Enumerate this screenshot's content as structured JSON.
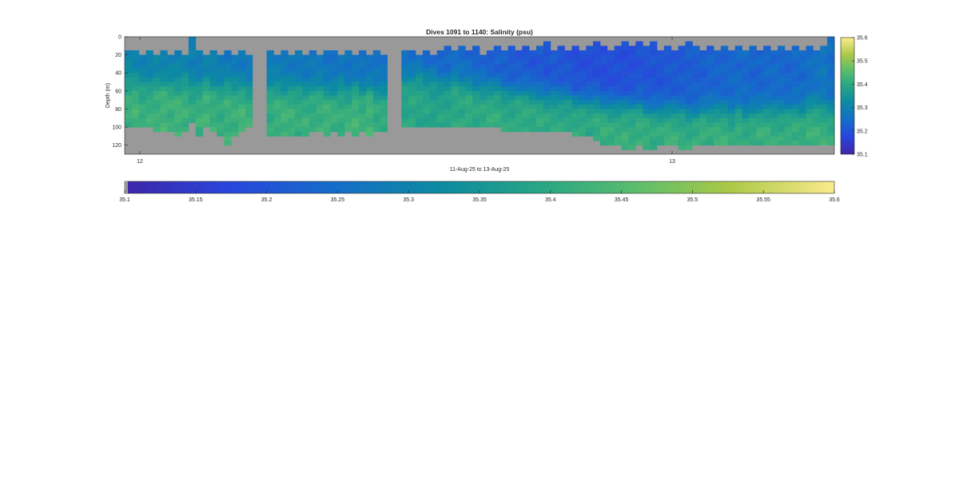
{
  "chart_data": [
    {
      "type": "heatmap",
      "title": "Dives 1091 to 1140: Salinity (psu)",
      "xlabel": "11-Aug-25 to 13-Aug-25",
      "ylabel": "Depth (m)",
      "yticks": [
        "0",
        "20",
        "40",
        "60",
        "80",
        "100",
        "120"
      ],
      "ylim": [
        0,
        130
      ],
      "y_reversed": true,
      "xticks": [
        "12",
        "13"
      ],
      "dives": [
        1091,
        1140
      ],
      "depth_bin_m": 5,
      "colormap": "parula-like (dark blue → blue → teal → green → yellow)",
      "nan_color": "#999999",
      "background_color": "#999999",
      "grid": false,
      "gaps_columns": [
        [
          18,
          19
        ],
        [
          37
        ]
      ],
      "top_depth_m": [
        15,
        15,
        20,
        15,
        20,
        15,
        20,
        15,
        20,
        0,
        15,
        20,
        15,
        20,
        15,
        20,
        15,
        20,
        0,
        0,
        15,
        20,
        15,
        20,
        15,
        20,
        15,
        20,
        15,
        15,
        20,
        15,
        20,
        15,
        20,
        15,
        20,
        0,
        0,
        15,
        15,
        20,
        15,
        20,
        15,
        10,
        15,
        10,
        15,
        10,
        20,
        15,
        10,
        15,
        10,
        15,
        10,
        15,
        10,
        5,
        15,
        10,
        15,
        10,
        15,
        10,
        5,
        10,
        15,
        10,
        5,
        10,
        5,
        10,
        5,
        15,
        10,
        15,
        10,
        5,
        10,
        15,
        10,
        15,
        10,
        15,
        10,
        15,
        10,
        15,
        10,
        15,
        10,
        15,
        10,
        15,
        10,
        15,
        10,
        0
      ],
      "bottom_depth_m": [
        100,
        100,
        100,
        100,
        105,
        105,
        105,
        110,
        105,
        95,
        110,
        100,
        105,
        110,
        120,
        110,
        105,
        100,
        0,
        0,
        110,
        110,
        110,
        110,
        110,
        110,
        105,
        105,
        110,
        105,
        110,
        105,
        110,
        105,
        110,
        105,
        105,
        0,
        0,
        100,
        100,
        100,
        100,
        100,
        100,
        100,
        100,
        100,
        100,
        100,
        100,
        100,
        100,
        105,
        105,
        105,
        105,
        105,
        105,
        105,
        105,
        105,
        105,
        110,
        110,
        110,
        115,
        120,
        120,
        120,
        125,
        125,
        120,
        125,
        125,
        120,
        120,
        120,
        125,
        125,
        120,
        120,
        120,
        120,
        120,
        120,
        120,
        120,
        120,
        120,
        120,
        120,
        120,
        120,
        120,
        120,
        120,
        120,
        120,
        120
      ],
      "shallow_salinity_psu": [
        35.31,
        35.3,
        35.29,
        35.3,
        35.3,
        35.29,
        35.29,
        35.3,
        35.3,
        35.29,
        35.28,
        35.29,
        35.29,
        35.28,
        35.27,
        35.28,
        35.27,
        35.28,
        0,
        0,
        35.28,
        35.28,
        35.28,
        35.27,
        35.27,
        35.27,
        35.27,
        35.27,
        35.26,
        35.26,
        35.27,
        35.26,
        35.26,
        35.26,
        35.25,
        35.26,
        35.26,
        0,
        0,
        35.25,
        35.24,
        35.24,
        35.23,
        35.24,
        35.23,
        35.23,
        35.24,
        35.24,
        35.23,
        35.23,
        35.23,
        35.22,
        35.22,
        35.22,
        35.21,
        35.21,
        35.21,
        35.2,
        35.21,
        35.2,
        35.21,
        35.2,
        35.2,
        35.19,
        35.19,
        35.19,
        35.19,
        35.19,
        35.19,
        35.19,
        35.19,
        35.19,
        35.2,
        35.2,
        35.2,
        35.2,
        35.21,
        35.21,
        35.21,
        35.22,
        35.22,
        35.22,
        35.23,
        35.23,
        35.23,
        35.24,
        35.24,
        35.24,
        35.23,
        35.23,
        35.24,
        35.24,
        35.24,
        35.23,
        35.24,
        35.24,
        35.25,
        35.26,
        35.27,
        35.25
      ],
      "deep_salinity_psu": [
        35.42,
        35.43,
        35.41,
        35.42,
        35.42,
        35.43,
        35.42,
        35.43,
        35.42,
        35.41,
        35.42,
        35.43,
        35.42,
        35.41,
        35.42,
        35.42,
        35.43,
        35.42,
        0,
        0,
        35.41,
        35.42,
        35.43,
        35.42,
        35.41,
        35.42,
        35.41,
        35.42,
        35.43,
        35.42,
        35.41,
        35.42,
        35.43,
        35.42,
        35.43,
        35.41,
        35.41,
        0,
        0,
        35.39,
        35.4,
        35.39,
        35.39,
        35.38,
        35.39,
        35.39,
        35.4,
        35.4,
        35.41,
        35.4,
        35.4,
        35.41,
        35.41,
        35.4,
        35.4,
        35.41,
        35.41,
        35.4,
        35.41,
        35.4,
        35.4,
        35.4,
        35.4,
        35.41,
        35.41,
        35.4,
        35.41,
        35.42,
        35.41,
        35.41,
        35.42,
        35.41,
        35.42,
        35.42,
        35.41,
        35.41,
        35.42,
        35.42,
        35.41,
        35.41,
        35.42,
        35.42,
        35.41,
        35.42,
        35.42,
        35.41,
        35.42,
        35.41,
        35.41,
        35.42,
        35.42,
        35.41,
        35.41,
        35.42,
        35.42,
        35.41,
        35.42,
        35.42,
        35.42,
        35.41
      ],
      "thermocline_depth_m": [
        50,
        50,
        50,
        55,
        50,
        50,
        50,
        55,
        50,
        55,
        55,
        50,
        55,
        55,
        50,
        55,
        55,
        60,
        0,
        0,
        55,
        55,
        60,
        55,
        55,
        60,
        55,
        55,
        60,
        60,
        55,
        60,
        55,
        60,
        55,
        60,
        60,
        0,
        0,
        45,
        45,
        40,
        45,
        45,
        50,
        50,
        45,
        50,
        50,
        55,
        55,
        55,
        55,
        60,
        60,
        60,
        60,
        60,
        65,
        65,
        65,
        65,
        65,
        70,
        70,
        70,
        70,
        75,
        75,
        75,
        75,
        75,
        75,
        80,
        80,
        80,
        80,
        80,
        80,
        85,
        85,
        80,
        80,
        80,
        80,
        85,
        80,
        85,
        80,
        80,
        80,
        80,
        80,
        80,
        80,
        80,
        75,
        75,
        80,
        80
      ]
    },
    {
      "type": "colorbar",
      "orientation": "vertical",
      "range": [
        35.1,
        35.6
      ],
      "ticks": [
        "35.1",
        "35.2",
        "35.3",
        "35.4",
        "35.5",
        "35.6"
      ]
    },
    {
      "type": "colorbar",
      "orientation": "horizontal",
      "range": [
        35.1,
        35.6
      ],
      "ticks": [
        "35.1",
        "35.15",
        "35.2",
        "35.25",
        "35.3",
        "35.35",
        "35.4",
        "35.45",
        "35.5",
        "35.55",
        "35.6"
      ]
    }
  ]
}
